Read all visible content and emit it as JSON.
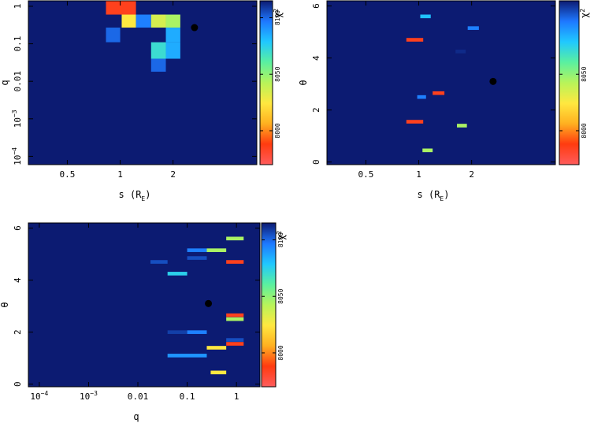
{
  "colormap": {
    "min": 7970,
    "max": 8115,
    "background": "#0c1b72",
    "stops": [
      "#ff5c5c",
      "#ff3b10",
      "#ffb020",
      "#ffe840",
      "#b8f45a",
      "#5af0a0",
      "#20c8ff",
      "#1e78ff",
      "#0c1b72"
    ]
  },
  "marker_color": "#000000",
  "chart_data": [
    {
      "id": "s_vs_q",
      "type": "heatmap",
      "xlabel": "s (R",
      "xlabel_sub": "E",
      "xlabel_close": ")",
      "ylabel": "q",
      "x_scale": "log",
      "y_scale": "log",
      "xlim": [
        0.3,
        6.0
      ],
      "ylim": [
        6e-05,
        1.4
      ],
      "x_ticks": [
        {
          "v": 0.5,
          "label": "0.5"
        },
        {
          "v": 1,
          "label": "1"
        },
        {
          "v": 2,
          "label": "2"
        }
      ],
      "y_ticks": [
        {
          "v": 1,
          "label": "1",
          "sup": ""
        },
        {
          "v": 0.1,
          "label": "0.1",
          "sup": ""
        },
        {
          "v": 0.01,
          "label": "0.01",
          "sup": ""
        },
        {
          "v": 0.001,
          "label": "10",
          "sup": "−3"
        },
        {
          "v": 0.0001,
          "label": "10",
          "sup": "−4"
        }
      ],
      "cells": [
        {
          "x0": 0.83,
          "x1": 1.23,
          "y0": 0.6,
          "y1": 1.4,
          "z": 7985
        },
        {
          "x0": 1.02,
          "x1": 1.23,
          "y0": 0.27,
          "y1": 0.6,
          "z": 8025
        },
        {
          "x0": 1.23,
          "x1": 1.5,
          "y0": 0.27,
          "y1": 0.6,
          "z": 8095
        },
        {
          "x0": 1.5,
          "x1": 1.82,
          "y0": 0.27,
          "y1": 0.6,
          "z": 8035
        },
        {
          "x0": 1.82,
          "x1": 2.2,
          "y0": 0.27,
          "y1": 0.6,
          "z": 8045
        },
        {
          "x0": 1.82,
          "x1": 2.2,
          "y0": 0.11,
          "y1": 0.27,
          "z": 8085
        },
        {
          "x0": 1.82,
          "x1": 2.2,
          "y0": 0.04,
          "y1": 0.11,
          "z": 8085
        },
        {
          "x0": 1.5,
          "x1": 1.82,
          "y0": 0.04,
          "y1": 0.11,
          "z": 8070
        },
        {
          "x0": 1.5,
          "x1": 1.82,
          "y0": 0.018,
          "y1": 0.04,
          "z": 8100
        },
        {
          "x0": 0.83,
          "x1": 1.0,
          "y0": 0.11,
          "y1": 0.27,
          "z": 8100
        }
      ],
      "marker": {
        "x": 2.65,
        "y": 0.27
      },
      "colorbar": {
        "label": "χ",
        "label_sup": "2",
        "ticks": [
          8000,
          8050,
          8100
        ]
      }
    },
    {
      "id": "s_vs_theta",
      "type": "heatmap",
      "xlabel": "s (R",
      "xlabel_sub": "E",
      "xlabel_close": ")",
      "ylabel": "θ",
      "x_scale": "log",
      "y_scale": "linear",
      "xlim": [
        0.3,
        6.0
      ],
      "ylim": [
        -0.1,
        6.2
      ],
      "x_ticks": [
        {
          "v": 0.5,
          "label": "0.5"
        },
        {
          "v": 1,
          "label": "1"
        },
        {
          "v": 2,
          "label": "2"
        }
      ],
      "y_ticks": [
        {
          "v": 0,
          "label": "0",
          "sup": ""
        },
        {
          "v": 2,
          "label": "2",
          "sup": ""
        },
        {
          "v": 4,
          "label": "4",
          "sup": ""
        },
        {
          "v": 6,
          "label": "6",
          "sup": ""
        }
      ],
      "cells": [
        {
          "x0": 1.02,
          "x1": 1.17,
          "y0": 5.53,
          "y1": 5.67,
          "z": 8080
        },
        {
          "x0": 0.85,
          "x1": 1.06,
          "y0": 4.63,
          "y1": 4.77,
          "z": 7985
        },
        {
          "x0": 1.9,
          "x1": 2.2,
          "y0": 5.08,
          "y1": 5.22,
          "z": 8095
        },
        {
          "x0": 1.62,
          "x1": 1.85,
          "y0": 4.18,
          "y1": 4.32,
          "z": 8112
        },
        {
          "x0": 0.98,
          "x1": 1.1,
          "y0": 2.43,
          "y1": 2.57,
          "z": 8095
        },
        {
          "x0": 1.2,
          "x1": 1.4,
          "y0": 2.58,
          "y1": 2.72,
          "z": 7985
        },
        {
          "x0": 0.85,
          "x1": 1.06,
          "y0": 1.48,
          "y1": 1.62,
          "z": 7985
        },
        {
          "x0": 1.65,
          "x1": 1.88,
          "y0": 1.33,
          "y1": 1.47,
          "z": 8045
        },
        {
          "x0": 1.05,
          "x1": 1.2,
          "y0": 0.38,
          "y1": 0.52,
          "z": 8045
        }
      ],
      "marker": {
        "x": 2.65,
        "y": 3.1
      },
      "colorbar": {
        "label": "χ",
        "label_sup": "2",
        "ticks": [
          8000,
          8050
        ]
      }
    },
    {
      "id": "q_vs_theta",
      "type": "heatmap",
      "xlabel": "q",
      "xlabel_sub": "",
      "xlabel_close": "",
      "ylabel": "θ",
      "x_scale": "log",
      "y_scale": "linear",
      "xlim": [
        6e-05,
        3.0
      ],
      "ylim": [
        -0.1,
        6.2
      ],
      "x_ticks": [
        {
          "v": 0.0001,
          "label": "10",
          "sup": "−4"
        },
        {
          "v": 0.001,
          "label": "10",
          "sup": "−3"
        },
        {
          "v": 0.01,
          "label": "0.01",
          "sup": ""
        },
        {
          "v": 0.1,
          "label": "0.1",
          "sup": ""
        },
        {
          "v": 1,
          "label": "1",
          "sup": ""
        }
      ],
      "y_ticks": [
        {
          "v": 0,
          "label": "0",
          "sup": ""
        },
        {
          "v": 2,
          "label": "2",
          "sup": ""
        },
        {
          "v": 4,
          "label": "4",
          "sup": ""
        },
        {
          "v": 6,
          "label": "6",
          "sup": ""
        }
      ],
      "cells": [
        {
          "x0": 0.62,
          "x1": 1.4,
          "y0": 5.53,
          "y1": 5.67,
          "z": 8045
        },
        {
          "x0": 0.25,
          "x1": 0.62,
          "y0": 5.08,
          "y1": 5.22,
          "z": 8045
        },
        {
          "x0": 0.1,
          "x1": 0.25,
          "y0": 5.08,
          "y1": 5.22,
          "z": 8095
        },
        {
          "x0": 0.1,
          "x1": 0.25,
          "y0": 4.78,
          "y1": 4.92,
          "z": 8105
        },
        {
          "x0": 0.62,
          "x1": 1.4,
          "y0": 4.63,
          "y1": 4.77,
          "z": 7985
        },
        {
          "x0": 0.018,
          "x1": 0.04,
          "y0": 4.63,
          "y1": 4.77,
          "z": 8105
        },
        {
          "x0": 0.04,
          "x1": 0.1,
          "y0": 4.18,
          "y1": 4.32,
          "z": 8075
        },
        {
          "x0": 0.62,
          "x1": 1.4,
          "y0": 2.58,
          "y1": 2.72,
          "z": 7985
        },
        {
          "x0": 0.62,
          "x1": 1.4,
          "y0": 2.43,
          "y1": 2.57,
          "z": 8045
        },
        {
          "x0": 0.1,
          "x1": 0.25,
          "y0": 1.93,
          "y1": 2.07,
          "z": 8095
        },
        {
          "x0": 0.04,
          "x1": 0.1,
          "y0": 1.93,
          "y1": 2.07,
          "z": 8108
        },
        {
          "x0": 0.62,
          "x1": 1.4,
          "y0": 1.63,
          "y1": 1.77,
          "z": 8105
        },
        {
          "x0": 0.62,
          "x1": 1.4,
          "y0": 1.48,
          "y1": 1.62,
          "z": 7985
        },
        {
          "x0": 0.25,
          "x1": 0.62,
          "y0": 1.33,
          "y1": 1.47,
          "z": 8025
        },
        {
          "x0": 0.04,
          "x1": 0.25,
          "y0": 1.03,
          "y1": 1.17,
          "z": 8090
        },
        {
          "x0": 0.3,
          "x1": 0.62,
          "y0": 0.38,
          "y1": 0.52,
          "z": 8025
        }
      ],
      "marker": {
        "x": 0.27,
        "y": 3.1
      },
      "colorbar": {
        "label": "χ",
        "label_sup": "2",
        "ticks": [
          8000,
          8050,
          8100
        ]
      }
    }
  ]
}
